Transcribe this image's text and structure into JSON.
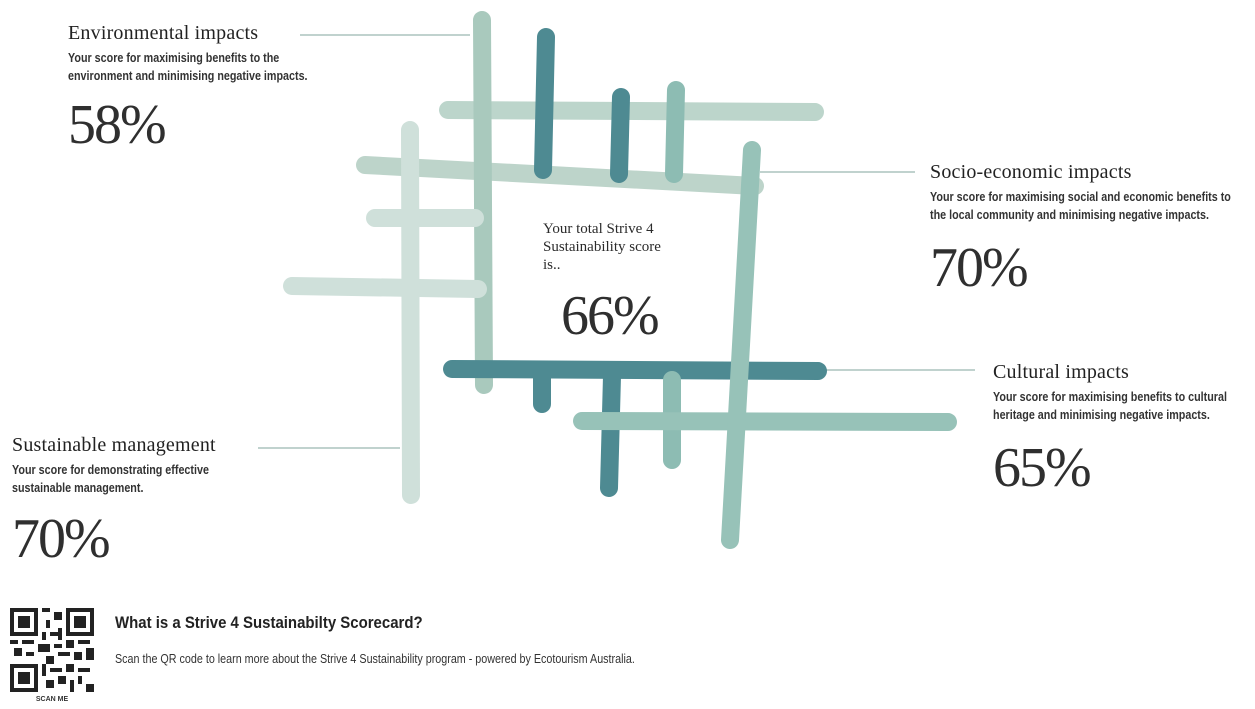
{
  "center": {
    "label": "Your total Strive 4 Sustainability score is..",
    "score": "66%"
  },
  "sections": [
    {
      "title": "Environmental impacts",
      "description": "Your score for maximising benefits to the environment and minimising negative impacts.",
      "score": "58%"
    },
    {
      "title": "Socio-economic impacts",
      "description": "Your score for maximising social and economic benefits to the local community and minimising negative impacts.",
      "score": "70%"
    },
    {
      "title": "Cultural impacts",
      "description": "Your score for maximising benefits to cultural heritage and minimising negative impacts.",
      "score": "65%"
    },
    {
      "title": "Sustainable management",
      "description": "Your score for demonstrating effective sustainable management.",
      "score": "70%"
    }
  ],
  "footer": {
    "heading": "What is a Strive 4 Sustainabilty Scorecard?",
    "text": "Scan the QR code to learn more about the Strive 4 Sustainability program - powered by Ecotourism Australia.",
    "qr_caption": "SCAN ME"
  }
}
